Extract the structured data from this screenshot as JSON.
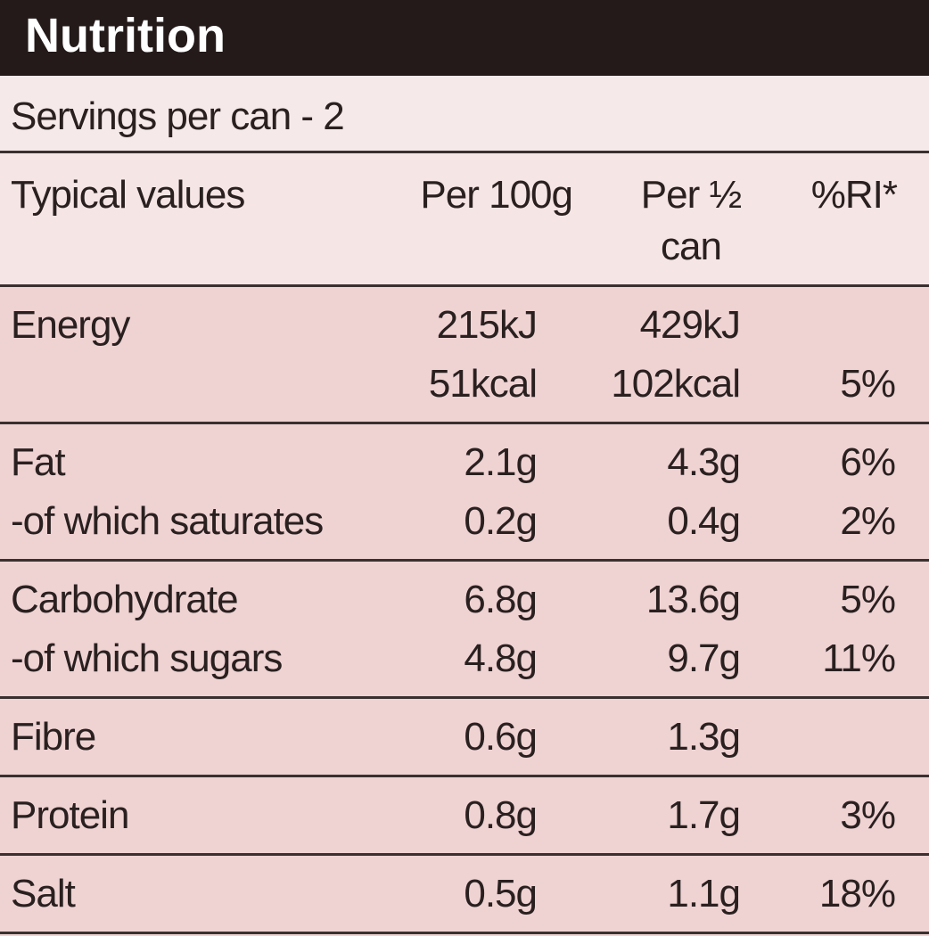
{
  "title": "Nutrition",
  "servings": "Servings per can - 2",
  "table": {
    "columns": [
      "Typical values",
      "Per 100g",
      "Per ½ can",
      "%RI*"
    ],
    "groups": [
      [
        [
          "Energy",
          "215kJ",
          "429kJ",
          null
        ],
        [
          null,
          "51kcal",
          "102kcal",
          "5%"
        ]
      ],
      [
        [
          "Fat",
          "2.1g",
          "4.3g",
          "6%"
        ],
        [
          "-of which saturates",
          "0.2g",
          "0.4g",
          "2%"
        ]
      ],
      [
        [
          "Carbohydrate",
          "6.8g",
          "13.6g",
          "5%"
        ],
        [
          "-of which sugars",
          "4.8g",
          "9.7g",
          "11%"
        ]
      ],
      [
        [
          "Fibre",
          "0.6g",
          "1.3g",
          null
        ]
      ],
      [
        [
          "Protein",
          "0.8g",
          "1.7g",
          "3%"
        ]
      ],
      [
        [
          "Salt",
          "0.5g",
          "1.1g",
          "18%"
        ]
      ]
    ]
  }
}
